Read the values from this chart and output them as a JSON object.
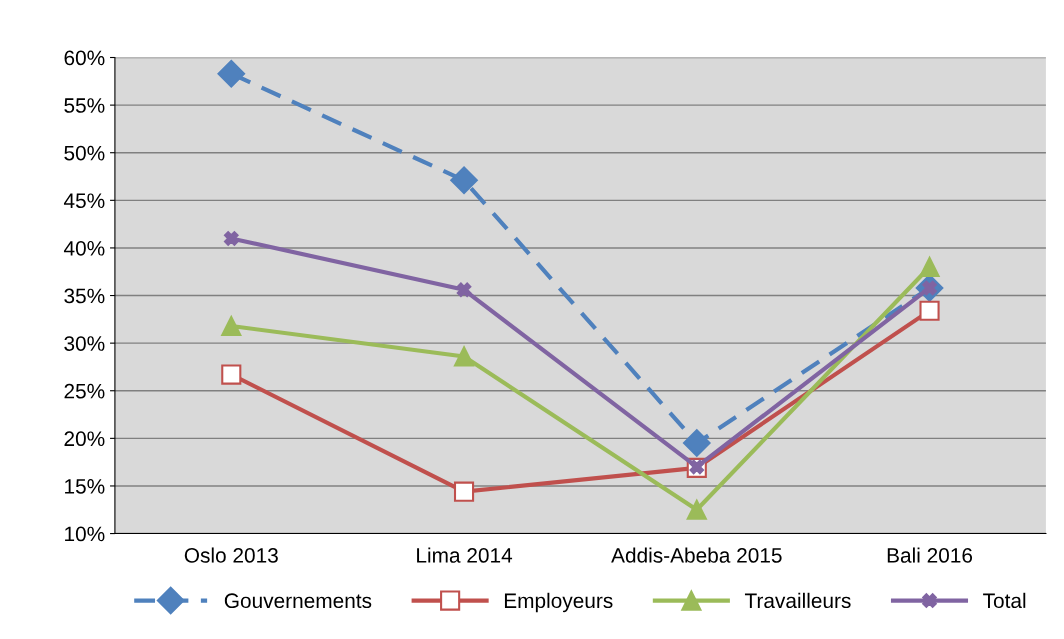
{
  "chart_data": {
    "type": "line",
    "categories": [
      "Oslo 2013",
      "Lima 2014",
      "Addis-Abeba 2015",
      "Bali 2016"
    ],
    "series": [
      {
        "name": "Gouvernements",
        "color": "#4f81bd",
        "marker": "diamond",
        "line_style": "dashed",
        "values": [
          58.3,
          47.1,
          19.5,
          35.8
        ]
      },
      {
        "name": "Employeurs",
        "color": "#c0504d",
        "marker": "square",
        "line_style": "solid",
        "values": [
          26.7,
          14.4,
          16.9,
          33.4
        ]
      },
      {
        "name": "Travailleurs",
        "color": "#9bbb59",
        "marker": "triangle",
        "line_style": "solid",
        "values": [
          31.8,
          28.6,
          12.5,
          38.0
        ]
      },
      {
        "name": "Total",
        "color": "#8064a2",
        "marker": "cross",
        "line_style": "solid",
        "values": [
          41.0,
          35.6,
          17.0,
          35.8
        ]
      }
    ],
    "ylim": [
      10,
      60
    ],
    "yticks": [
      {
        "value": 10,
        "label": "10%"
      },
      {
        "value": 15,
        "label": "15%"
      },
      {
        "value": 20,
        "label": "20%"
      },
      {
        "value": 25,
        "label": "25%"
      },
      {
        "value": 30,
        "label": "30%"
      },
      {
        "value": 35,
        "label": "35%"
      },
      {
        "value": 40,
        "label": "40%"
      },
      {
        "value": 45,
        "label": "45%"
      },
      {
        "value": 50,
        "label": "50%"
      },
      {
        "value": 55,
        "label": "55%"
      },
      {
        "value": 60,
        "label": "60%"
      }
    ],
    "grid": "y",
    "legend": "bottom"
  }
}
